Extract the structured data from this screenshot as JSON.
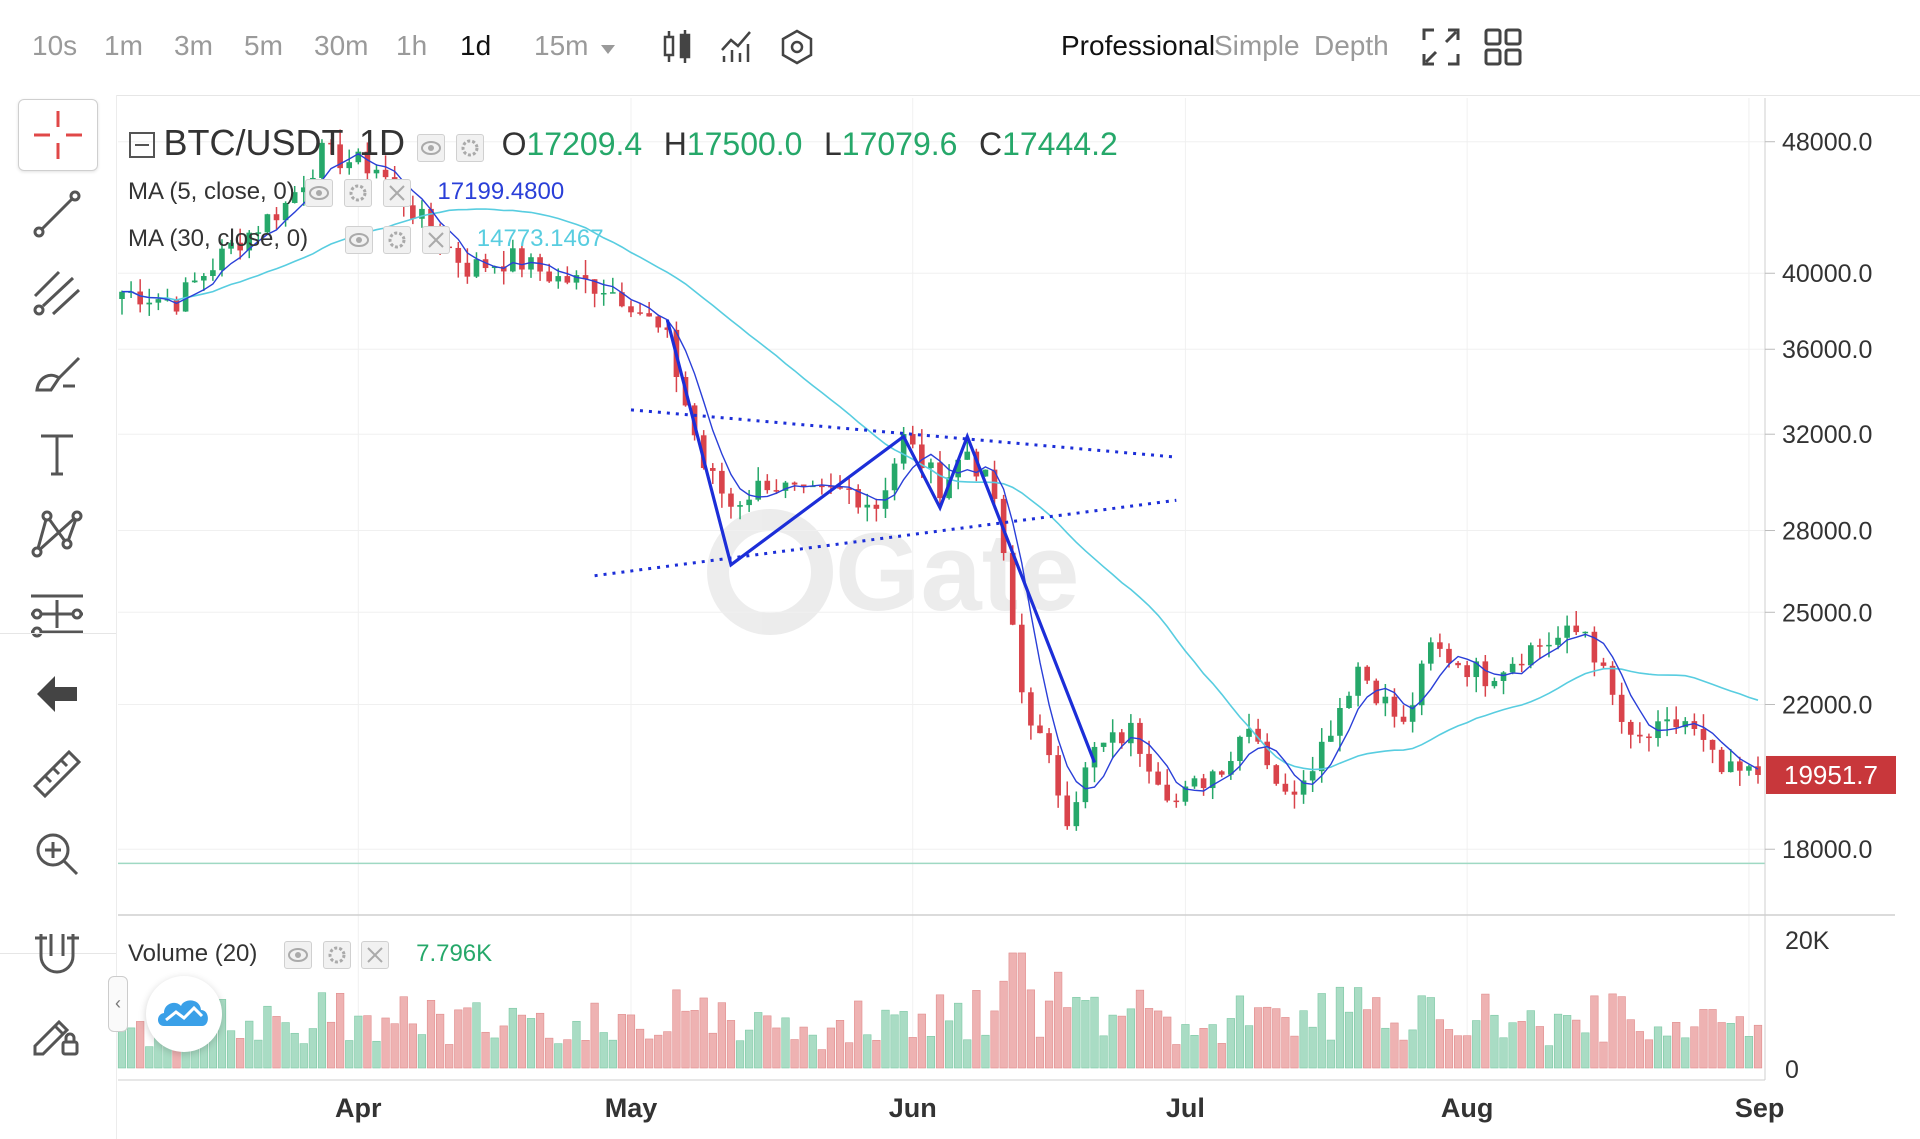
{
  "toolbar": {
    "timeframes": [
      "10s",
      "1m",
      "3m",
      "5m",
      "30m",
      "1h",
      "1d",
      "15m"
    ],
    "active_timeframe": "1d",
    "dropdown_timeframe": "15m",
    "modes": [
      "Professional",
      "Simple",
      "Depth"
    ],
    "active_mode": "Professional",
    "icons": [
      "candle-type-icon",
      "indicator-icon",
      "settings-hex-icon",
      "fullscreen-icon",
      "grid-layout-icon"
    ]
  },
  "left_tools": [
    "crosshair-icon",
    "trend-line-icon",
    "fib-channel-icon",
    "brush-icon",
    "text-icon",
    "pattern-icon",
    "measure-icon",
    "back-arrow-icon",
    "ruler-icon",
    "zoom-in-icon",
    "magnet-icon",
    "lock-drawing-icon"
  ],
  "legend": {
    "symbol": "BTC/USDT",
    "interval": "1D",
    "o_label": "O",
    "o": "17209.4",
    "h_label": "H",
    "h": "17500.0",
    "l_label": "L",
    "l": "17079.6",
    "c_label": "C",
    "c": "17444.2",
    "ma5_label": "MA (5, close, 0)",
    "ma5_value": "17199.4800",
    "ma30_label": "MA (30, close, 0)",
    "ma30_value": "14773.1467",
    "volume_label": "Volume (20)",
    "volume_value": "7.796K"
  },
  "colors": {
    "up": "#26a86a",
    "down": "#d9434b",
    "ma5": "#2a3fd8",
    "ma30": "#58cde0",
    "pattern": "#1c2ed8",
    "price_tag": "#c8373b"
  },
  "chart_data": {
    "type": "candlestick",
    "symbol": "BTC/USDT",
    "interval": "1D",
    "y_ticks": [
      48000,
      40000,
      36000,
      32000,
      28000,
      25000,
      22000,
      18000
    ],
    "y_scale": "log",
    "ylim": [
      16500,
      51000
    ],
    "x_ticks": [
      "Apr",
      "May",
      "Jun",
      "Jul",
      "Aug",
      "Sep"
    ],
    "current_price": "19951.7",
    "volume_ticks": [
      "20K",
      "0"
    ],
    "volume_max": 20000,
    "anchors": [
      [
        "Mar 06",
        39000
      ],
      [
        "Mar 12",
        38500
      ],
      [
        "Mar 18",
        41500
      ],
      [
        "Mar 24",
        44000
      ],
      [
        "Mar 28",
        47200
      ],
      [
        "Apr 03",
        46300
      ],
      [
        "Apr 08",
        43000
      ],
      [
        "Apr 13",
        40300
      ],
      [
        "Apr 18",
        40800
      ],
      [
        "Apr 23",
        39700
      ],
      [
        "Apr 28",
        39300
      ],
      [
        "May 01",
        38500
      ],
      [
        "May 05",
        36400
      ],
      [
        "May 09",
        30600
      ],
      [
        "May 12",
        29000
      ],
      [
        "May 16",
        30000
      ],
      [
        "May 20",
        29300
      ],
      [
        "May 25",
        29600
      ],
      [
        "May 28",
        29000
      ],
      [
        "May 31",
        31800
      ],
      [
        "Jun 04",
        29800
      ],
      [
        "Jun 07",
        31300
      ],
      [
        "Jun 10",
        29300
      ],
      [
        "Jun 13",
        22400
      ],
      [
        "Jun 18",
        18900
      ],
      [
        "Jun 21",
        20600
      ],
      [
        "Jun 25",
        21200
      ],
      [
        "Jun 30",
        19200
      ],
      [
        "Jul 06",
        20500
      ],
      [
        "Jul 08",
        21600
      ],
      [
        "Jul 12",
        19300
      ],
      [
        "Jul 16",
        20800
      ],
      [
        "Jul 20",
        23200
      ],
      [
        "Jul 25",
        21300
      ],
      [
        "Jul 28",
        23800
      ],
      [
        "Aug 03",
        22900
      ],
      [
        "Aug 08",
        23800
      ],
      [
        "Aug 14",
        24400
      ],
      [
        "Aug 19",
        20800
      ],
      [
        "Aug 25",
        21500
      ],
      [
        "Aug 29",
        20000
      ],
      [
        "Sep 02",
        19951.7
      ]
    ],
    "pattern_points": [
      [
        "May 05",
        37500
      ],
      [
        "May 12",
        26700
      ],
      [
        "May 31",
        31900
      ],
      [
        "Jun 04",
        28900
      ],
      [
        "Jun 07",
        31900
      ],
      [
        "Jun 21",
        20300
      ]
    ],
    "trend_upper": [
      [
        "May 01",
        33100
      ],
      [
        "Jun 30",
        31000
      ]
    ],
    "trend_lower": [
      [
        "Apr 27",
        26300
      ],
      [
        "Jun 30",
        29200
      ]
    ],
    "horizontal_level": 17650
  }
}
